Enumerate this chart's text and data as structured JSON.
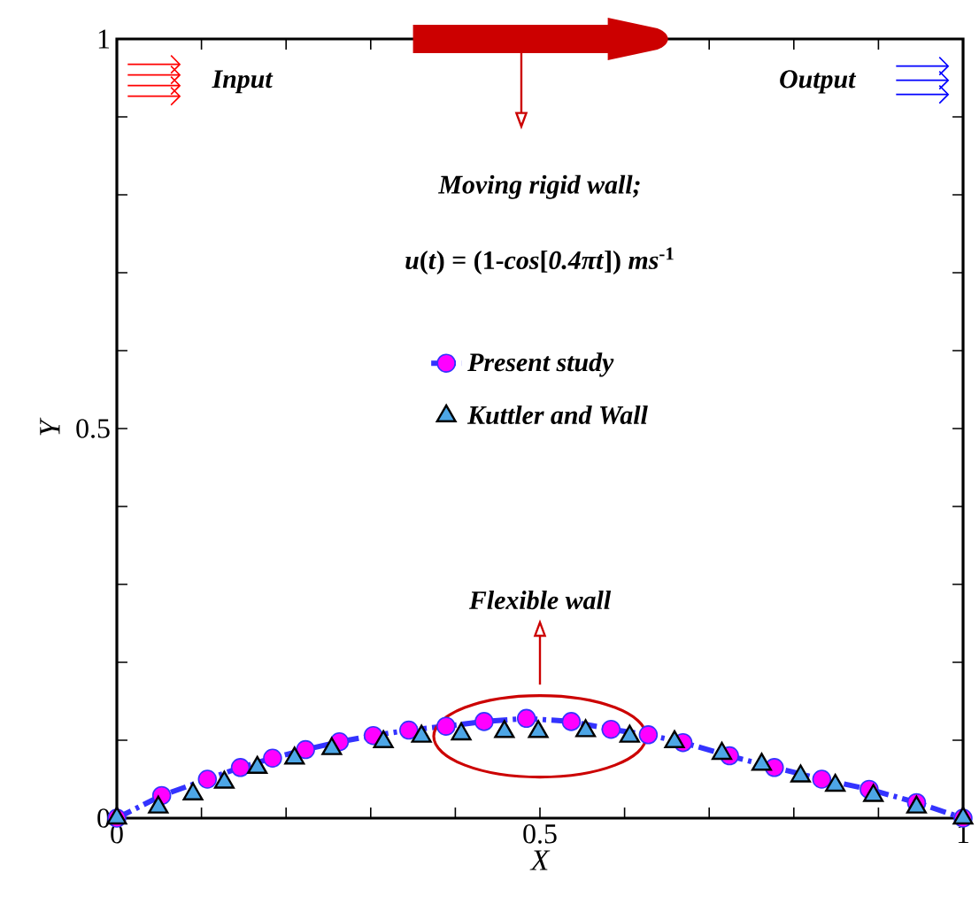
{
  "chart_data": {
    "type": "line",
    "xlabel": "X",
    "ylabel": "Y",
    "xlim": [
      0,
      1
    ],
    "ylim": [
      0,
      1
    ],
    "xticks": [
      0,
      {
        "value": 0.1,
        "label": null
      },
      {
        "value": 0.2,
        "label": null
      },
      {
        "value": 0.3,
        "label": null
      },
      {
        "value": 0.4,
        "label": null
      },
      0.5,
      {
        "value": 0.6,
        "label": null
      },
      {
        "value": 0.7,
        "label": null
      },
      {
        "value": 0.8,
        "label": null
      },
      {
        "value": 0.9,
        "label": null
      },
      1
    ],
    "yticks": [
      0,
      {
        "value": 0.1,
        "label": null
      },
      {
        "value": 0.2,
        "label": null
      },
      {
        "value": 0.3,
        "label": null
      },
      {
        "value": 0.4,
        "label": null
      },
      0.5,
      {
        "value": 0.6,
        "label": null
      },
      {
        "value": 0.7,
        "label": null
      },
      {
        "value": 0.8,
        "label": null
      },
      {
        "value": 0.9,
        "label": null
      },
      1
    ],
    "legend": "center",
    "annotations": [
      "Input",
      "Output",
      "Moving rigid wall;",
      "*u*(*t*) = (1-*cos*[*0.4πt*]) *ms*$^{-1}$",
      "Flexible wall"
    ],
    "series": [
      {
        "name": "Present study",
        "color": "#ff00ff",
        "marker": "circle",
        "line_style": "dashdot",
        "x": [
          0,
          0.053,
          0.107,
          0.146,
          0.184,
          0.223,
          0.263,
          0.303,
          0.345,
          0.389,
          0.434,
          0.484,
          0.537,
          0.584,
          0.628,
          0.669,
          0.724,
          0.777,
          0.833,
          0.889,
          0.945,
          1
        ],
        "values": [
          0,
          0.029,
          0.05,
          0.065,
          0.077,
          0.088,
          0.098,
          0.106,
          0.113,
          0.118,
          0.124,
          0.128,
          0.124,
          0.114,
          0.107,
          0.097,
          0.08,
          0.065,
          0.05,
          0.037,
          0.02,
          0
        ]
      },
      {
        "name": "Kuttler and Wall",
        "type": "scatter",
        "color": "#4da6e6",
        "marker": "triangle",
        "x": [
          0,
          0.049,
          0.09,
          0.127,
          0.166,
          0.21,
          0.254,
          0.315,
          0.36,
          0.407,
          0.458,
          0.498,
          0.554,
          0.606,
          0.659,
          0.715,
          0.762,
          0.808,
          0.849,
          0.894,
          0.945,
          1
        ],
        "values": [
          0,
          0.014,
          0.031,
          0.046,
          0.065,
          0.077,
          0.089,
          0.098,
          0.105,
          0.108,
          0.111,
          0.111,
          0.112,
          0.105,
          0.098,
          0.083,
          0.069,
          0.054,
          0.042,
          0.029,
          0.014,
          0
        ]
      }
    ]
  }
}
